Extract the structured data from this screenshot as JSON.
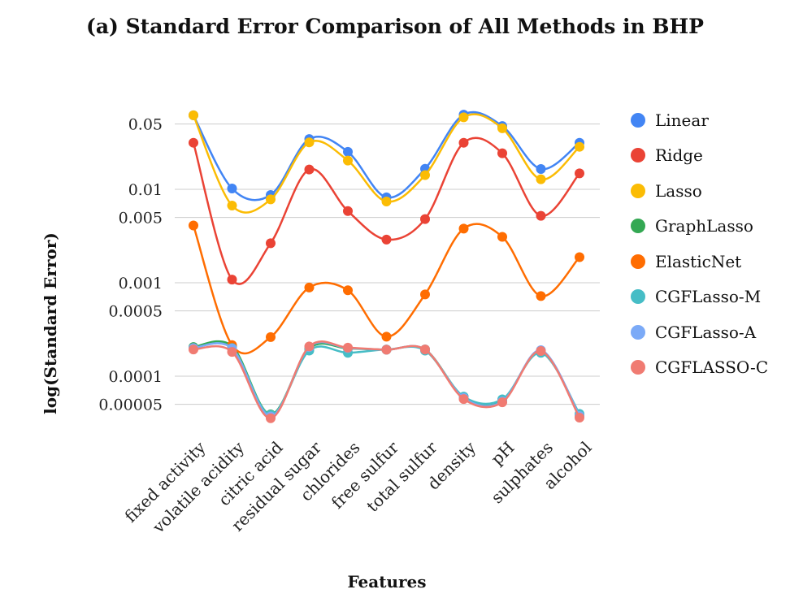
{
  "chart_data": {
    "type": "line",
    "title": "(a) Standard Error Comparison of All Methods in BHP",
    "xlabel": "Features",
    "ylabel": "log(Standard Error)",
    "yscale": "log",
    "ylim": [
      3.5e-05,
      0.065
    ],
    "yticks": [
      0.05,
      0.01,
      0.005,
      0.001,
      0.0005,
      0.0001,
      5e-05
    ],
    "ytick_labels": [
      "0.05",
      "0.01",
      "0.005",
      "0.001",
      "0.0005",
      "0.0001",
      "0.00005"
    ],
    "grid": true,
    "legend_position": "right",
    "categories": [
      "fixed activity",
      "volatile acidity",
      "citric acid",
      "residual sugar",
      "chlorides",
      "free sulfur",
      "total sulfur",
      "density",
      "pH",
      "sulphates",
      "alcohol"
    ],
    "series": [
      {
        "name": "Linear",
        "color": "#4285F4",
        "values": [
          0.062,
          0.0102,
          0.0087,
          0.0345,
          0.0252,
          0.0082,
          0.0166,
          0.063,
          0.0475,
          0.0165,
          0.0315
        ]
      },
      {
        "name": "Ridge",
        "color": "#EA4335",
        "values": [
          0.0315,
          0.00108,
          0.00265,
          0.0163,
          0.00585,
          0.0029,
          0.0048,
          0.0315,
          0.0243,
          0.0052,
          0.0148
        ]
      },
      {
        "name": "Lasso",
        "color": "#FBBC04",
        "values": [
          0.062,
          0.0067,
          0.0078,
          0.0318,
          0.0203,
          0.0074,
          0.0142,
          0.059,
          0.045,
          0.0128,
          0.0285
        ]
      },
      {
        "name": "GraphLasso",
        "color": "#34A853",
        "values": [
          0.000205,
          0.00021,
          3.9e-05,
          0.000198,
          0.000198,
          0.000192,
          0.000193,
          6e-05,
          5.5e-05,
          0.000185,
          3.8e-05
        ]
      },
      {
        "name": "ElasticNet",
        "color": "#FF6D01",
        "values": [
          0.0041,
          0.000215,
          0.000262,
          0.00089,
          0.00083,
          0.000265,
          0.00075,
          0.0038,
          0.0031,
          0.00072,
          0.00188
        ]
      },
      {
        "name": "CGFLasso-M",
        "color": "#46BDC6",
        "values": [
          0.0002,
          0.0002,
          3.85e-05,
          0.000188,
          0.000178,
          0.000193,
          0.000188,
          6.05e-05,
          5.65e-05,
          0.000178,
          3.95e-05
        ]
      },
      {
        "name": "CGFLasso-A",
        "color": "#7BAAF7",
        "values": [
          0.0002,
          0.000198,
          3.7e-05,
          0.000205,
          0.0002,
          0.000192,
          0.000193,
          5.85e-05,
          5.35e-05,
          0.00019,
          3.75e-05
        ]
      },
      {
        "name": "CGFLASSO-C",
        "color": "#F07B72",
        "values": [
          0.000193,
          0.000182,
          3.55e-05,
          0.000208,
          0.000202,
          0.000192,
          0.000193,
          5.7e-05,
          5.25e-05,
          0.000186,
          3.6e-05
        ]
      }
    ]
  }
}
